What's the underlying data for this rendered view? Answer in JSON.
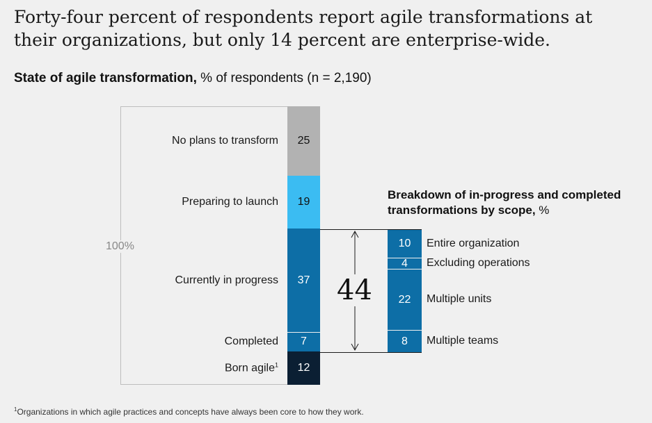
{
  "headline": "Forty-four percent of respondents report agile transformations at their organizations, but only 14 percent are enterprise-wide.",
  "subtitle_bold": "State of agile transformation,",
  "subtitle_rest": " % of respondents (n = 2,190)",
  "total_label": "100%",
  "total_callout": "44",
  "breakdown_title_bold": "Breakdown of in-progress and completed transformations by scope,",
  "breakdown_title_rest": " %",
  "footnote_marker": "1",
  "footnote_text": "Organizations in which agile practices and concepts have always been core to how they work.",
  "colors": {
    "no_plans": "#b2b2b2",
    "preparing": "#3bbcf2",
    "in_progress": "#0d6ea6",
    "completed": "#0d6ea6",
    "born_agile": "#0b1f33",
    "breakdown": "#0d6ea6"
  },
  "chart_data": [
    {
      "type": "bar",
      "stacked": true,
      "title": "State of agile transformation",
      "unit": "% of respondents",
      "total": 100,
      "categories": [
        "No plans to transform",
        "Preparing to launch",
        "Currently in progress",
        "Completed",
        "Born agile"
      ],
      "values": [
        25,
        19,
        37,
        7,
        12
      ],
      "display_values": [
        "25",
        "19",
        "37",
        "7",
        "12"
      ],
      "footnote_marker": [
        "",
        "",
        "",
        "",
        "1"
      ]
    },
    {
      "type": "bar",
      "stacked": true,
      "title": "Breakdown of in-progress and completed transformations by scope",
      "unit": "%",
      "total": 44,
      "categories": [
        "Entire organization",
        "Excluding operations",
        "Multiple units",
        "Multiple teams"
      ],
      "values": [
        10,
        4,
        22,
        8
      ],
      "display_values": [
        "10",
        "4",
        "22",
        "8"
      ]
    }
  ]
}
